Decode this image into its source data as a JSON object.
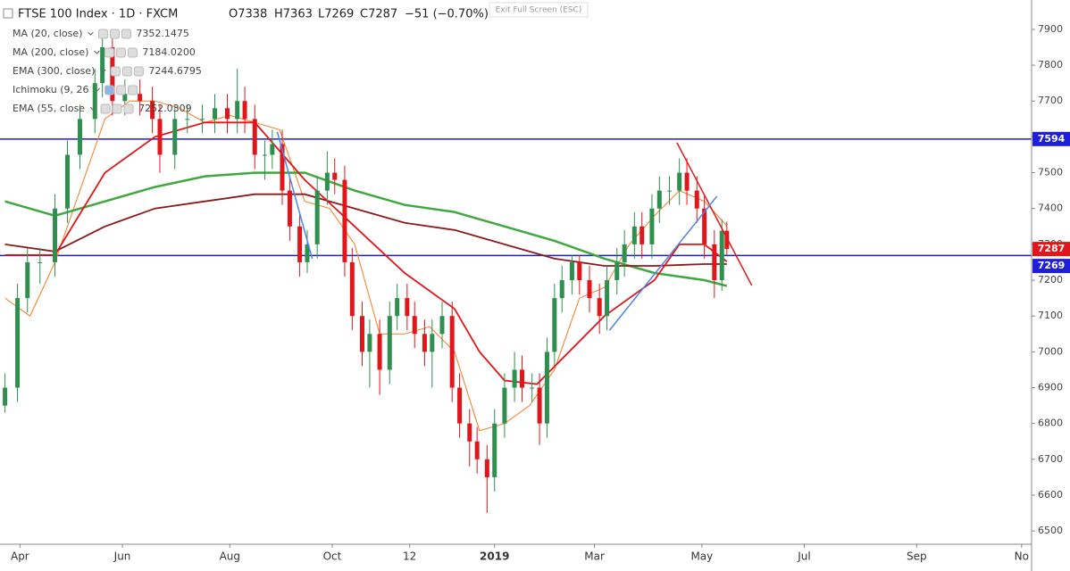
{
  "header": {
    "symbol": "FTSE 100 Index · 1D · FXCM",
    "open": "O7338",
    "high": "H7363",
    "low": "L7269",
    "close": "C7287",
    "change": "−51 (−0.70%)",
    "exit": "Exit Full Screen (ESC)"
  },
  "chart_data": {
    "type": "candlestick",
    "up_color": "#2f8f4e",
    "down_color": "#e0161a",
    "xlim": [
      -2,
      411
    ],
    "ylim": [
      6463,
      7982
    ],
    "xticks": [
      {
        "value": 6,
        "label": "Apr"
      },
      {
        "value": 47,
        "label": "Jun"
      },
      {
        "value": 90,
        "label": "Aug"
      },
      {
        "value": 131,
        "label": "Oct"
      },
      {
        "value": 162,
        "label": "12"
      },
      {
        "value": 196,
        "label": "2019"
      },
      {
        "value": 236,
        "label": "Mar"
      },
      {
        "value": 279,
        "label": "May"
      },
      {
        "value": 320,
        "label": "Jul"
      },
      {
        "value": 365,
        "label": "Sep"
      },
      {
        "value": 407,
        "label": "No"
      }
    ],
    "yticks": [
      6500,
      6600,
      6700,
      6800,
      6900,
      7000,
      7100,
      7200,
      7300,
      7400,
      7500,
      7600,
      7700,
      7800,
      7900
    ],
    "candles": {
      "x": [
        0,
        5,
        9,
        14,
        20,
        25,
        30,
        36,
        39,
        43,
        48,
        54,
        59,
        62,
        68,
        73,
        79,
        84,
        89,
        93,
        96,
        100,
        104,
        107,
        111,
        114,
        118,
        121,
        125,
        129,
        132,
        136,
        139,
        143,
        146,
        150,
        154,
        157,
        161,
        164,
        168,
        171,
        175,
        179,
        182,
        186,
        189,
        193,
        196,
        200,
        204,
        207,
        211,
        214,
        217,
        220,
        223,
        227,
        230,
        234,
        238,
        241,
        245,
        248,
        252,
        255,
        259,
        262,
        266,
        270,
        273,
        277,
        280,
        284,
        287,
        289
      ],
      "open": [
        6850,
        6900,
        7150,
        7250,
        7250,
        7400,
        7550,
        7650,
        7750,
        7850,
        7700,
        7720,
        7700,
        7650,
        7550,
        7650,
        7650,
        7650,
        7680,
        7650,
        7700,
        7650,
        7550,
        7550,
        7580,
        7450,
        7350,
        7250,
        7300,
        7450,
        7500,
        7480,
        7250,
        7100,
        7000,
        7050,
        6950,
        7100,
        7150,
        7100,
        7050,
        7000,
        7050,
        7100,
        6900,
        6800,
        6750,
        6700,
        6650,
        6800,
        6900,
        6950,
        6900,
        6900,
        6800,
        7000,
        7150,
        7200,
        7250,
        7200,
        7150,
        7100,
        7200,
        7250,
        7300,
        7350,
        7300,
        7400,
        7450,
        7450,
        7500,
        7450,
        7400,
        7300,
        7200,
        7338
      ],
      "high": [
        6940,
        7190,
        7290,
        7290,
        7440,
        7590,
        7690,
        7790,
        7900,
        7890,
        7760,
        7760,
        7740,
        7690,
        7690,
        7690,
        7690,
        7720,
        7720,
        7790,
        7740,
        7690,
        7590,
        7620,
        7620,
        7490,
        7390,
        7340,
        7490,
        7560,
        7540,
        7520,
        7290,
        7140,
        7090,
        7090,
        7140,
        7190,
        7190,
        7140,
        7090,
        7090,
        7140,
        7140,
        6940,
        6840,
        6790,
        6740,
        6840,
        6940,
        7000,
        6990,
        6940,
        6940,
        7040,
        7190,
        7240,
        7270,
        7270,
        7240,
        7190,
        7240,
        7290,
        7340,
        7390,
        7390,
        7440,
        7490,
        7490,
        7540,
        7540,
        7490,
        7440,
        7340,
        7370,
        7363
      ],
      "low": [
        6830,
        6860,
        7110,
        7190,
        7210,
        7360,
        7510,
        7610,
        7710,
        7660,
        7660,
        7660,
        7610,
        7500,
        7510,
        7610,
        7610,
        7610,
        7610,
        7610,
        7610,
        7510,
        7480,
        7510,
        7410,
        7310,
        7210,
        7220,
        7260,
        7410,
        7440,
        7210,
        7060,
        6960,
        6900,
        6880,
        6910,
        7060,
        7060,
        7010,
        6960,
        6900,
        7010,
        6860,
        6760,
        6680,
        6660,
        6550,
        6610,
        6760,
        6860,
        6860,
        6860,
        6740,
        6760,
        6960,
        7110,
        7160,
        7160,
        7110,
        7050,
        7060,
        7160,
        7210,
        7260,
        7260,
        7260,
        7360,
        7410,
        7410,
        7410,
        7360,
        7260,
        7150,
        7170,
        7269
      ],
      "close": [
        6900,
        7150,
        7250,
        7250,
        7400,
        7550,
        7650,
        7750,
        7850,
        7700,
        7720,
        7700,
        7650,
        7550,
        7650,
        7650,
        7650,
        7680,
        7650,
        7700,
        7650,
        7550,
        7550,
        7580,
        7450,
        7350,
        7250,
        7300,
        7450,
        7500,
        7480,
        7250,
        7100,
        7000,
        7050,
        6950,
        7100,
        7150,
        7100,
        7050,
        7000,
        7050,
        7100,
        6900,
        6800,
        6750,
        6700,
        6650,
        6800,
        6900,
        6950,
        6900,
        6900,
        6800,
        7000,
        7150,
        7200,
        7250,
        7200,
        7150,
        7100,
        7200,
        7250,
        7300,
        7350,
        7300,
        7400,
        7450,
        7450,
        7500,
        7450,
        7400,
        7300,
        7200,
        7338,
        7287
      ]
    },
    "series": [
      {
        "name": "MA (20, close)",
        "value_label": "7352.1475",
        "color": "#f57c20",
        "width": 1,
        "x": [
          0,
          10,
          20,
          30,
          40,
          50,
          60,
          70,
          80,
          90,
          100,
          110,
          120,
          130,
          140,
          150,
          160,
          170,
          180,
          190,
          200,
          210,
          220,
          230,
          240,
          250,
          260,
          270,
          280,
          289
        ],
        "values": [
          7150,
          7100,
          7250,
          7450,
          7650,
          7700,
          7700,
          7680,
          7640,
          7660,
          7640,
          7620,
          7420,
          7400,
          7300,
          7050,
          7050,
          7070,
          7000,
          6780,
          6800,
          6850,
          6950,
          7150,
          7180,
          7300,
          7380,
          7450,
          7420,
          7352
        ]
      },
      {
        "name": "MA (200, close)",
        "value_label": "7184.0200",
        "color": "#3fa83f",
        "width": 2.5,
        "x": [
          0,
          20,
          40,
          60,
          80,
          100,
          120,
          140,
          160,
          180,
          200,
          220,
          240,
          260,
          280,
          289
        ],
        "values": [
          7420,
          7380,
          7420,
          7460,
          7490,
          7500,
          7500,
          7450,
          7410,
          7390,
          7350,
          7310,
          7260,
          7220,
          7200,
          7184
        ]
      },
      {
        "name": "EMA (300, close)",
        "value_label": "7244.6795",
        "color": "#8b1a1a",
        "width": 1.8,
        "x": [
          0,
          20,
          40,
          60,
          80,
          100,
          120,
          140,
          160,
          180,
          200,
          220,
          240,
          260,
          280,
          289
        ],
        "values": [
          7300,
          7280,
          7350,
          7400,
          7420,
          7440,
          7440,
          7400,
          7360,
          7340,
          7300,
          7260,
          7240,
          7240,
          7245,
          7245
        ]
      },
      {
        "name": "Ichimoku (9, 26",
        "color": "#999999"
      },
      {
        "name": "EMA (55, close",
        "value_label": "7252.0309",
        "color": "#e0161a",
        "width": 1.8,
        "x": [
          0,
          20,
          40,
          60,
          80,
          100,
          120,
          140,
          160,
          180,
          190,
          200,
          213,
          240,
          260,
          270,
          280,
          289
        ],
        "values": [
          7270,
          7270,
          7500,
          7600,
          7640,
          7640,
          7480,
          7350,
          7220,
          7120,
          7000,
          6920,
          6910,
          7100,
          7200,
          7300,
          7300,
          7252
        ]
      }
    ],
    "hlines": [
      {
        "value": 7594,
        "color": "#1f1fd6"
      },
      {
        "value": 7269,
        "color": "#1f1fd6"
      }
    ],
    "last_price": {
      "value": 7287,
      "color": "#e0161a"
    },
    "trendlines": [
      {
        "x": [
          269,
          299
        ],
        "y": [
          7584,
          7185
        ],
        "color": "#e0161a"
      },
      {
        "x": [
          242,
          285
        ],
        "y": [
          7060,
          7434
        ],
        "color": "#4a86e8"
      },
      {
        "x": [
          109,
          123
        ],
        "y": [
          7614,
          7260
        ],
        "color": "#4a86e8"
      }
    ]
  }
}
